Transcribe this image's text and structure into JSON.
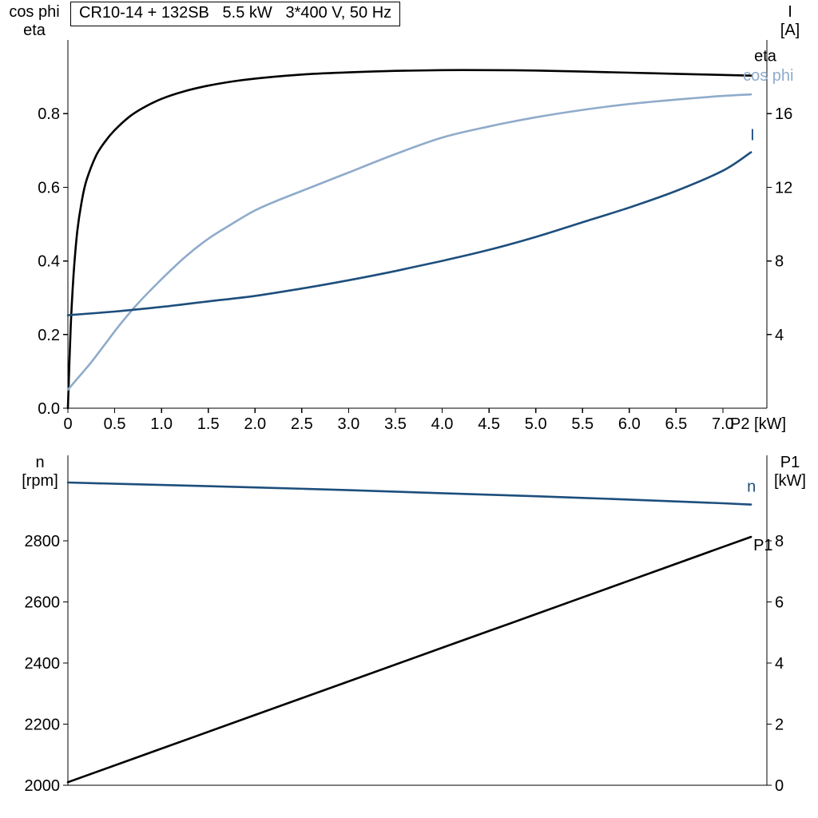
{
  "title_box": {
    "text": "CR10-14 + 132SB   5.5 kW   3*400 V, 50 Hz"
  },
  "axis_corner_labels": {
    "top_left": "cos phi\neta",
    "top_right": "I\n[A]",
    "bottom_left": "n\n[rpm]",
    "bottom_right": "P1\n[kW]"
  },
  "colors": {
    "curve_black": "#000000",
    "curve_dark_blue": "#1d4e7c",
    "curve_light_blue": "#8fabcb"
  },
  "chart_data": [
    {
      "type": "line",
      "position": "top",
      "title": "CR10-14 + 132SB   5.5 kW   3*400 V, 50 Hz",
      "grid": false,
      "legend_position": "curve-end-labels",
      "x_axis": {
        "label": "P2 [kW]",
        "lim": [
          0,
          7.47
        ],
        "tick_values": [
          0,
          0.5,
          1,
          1.5,
          2,
          2.5,
          3,
          3.5,
          4,
          4.5,
          5,
          5.5,
          6,
          6.5,
          7
        ],
        "tick_labels": [
          "0",
          "0.5",
          "1.0",
          "1.5",
          "2.0",
          "2.5",
          "3.0",
          "3.5",
          "4.0",
          "4.5",
          "5.0",
          "5.5",
          "6.0",
          "6.5",
          "7.0"
        ]
      },
      "left_axis": {
        "name": "cos phi / eta",
        "lim": [
          0,
          1.0
        ],
        "tick_values": [
          0,
          0.2,
          0.4,
          0.6,
          0.8
        ],
        "tick_labels": [
          "0.0",
          "0.2",
          "0.4",
          "0.6",
          "0.8"
        ]
      },
      "right_axis": {
        "name": "I [A]",
        "lim": [
          0,
          20
        ],
        "tick_values": [
          4,
          8,
          12,
          16
        ],
        "tick_labels": [
          "4",
          "8",
          "12",
          "16"
        ]
      },
      "series": [
        {
          "name": "eta",
          "label": "eta",
          "axis": "left",
          "color": "#000000",
          "label_offset": [
            4,
            -18
          ],
          "x": [
            0,
            0.03,
            0.06,
            0.1,
            0.15,
            0.2,
            0.3,
            0.4,
            0.5,
            0.65,
            0.8,
            1.0,
            1.25,
            1.5,
            1.75,
            2.0,
            2.5,
            3.0,
            3.5,
            4.0,
            4.5,
            5.0,
            5.5,
            6.0,
            6.5,
            7.0,
            7.3
          ],
          "y": [
            0.0,
            0.22,
            0.36,
            0.48,
            0.565,
            0.62,
            0.685,
            0.725,
            0.755,
            0.79,
            0.815,
            0.84,
            0.861,
            0.876,
            0.887,
            0.895,
            0.906,
            0.912,
            0.916,
            0.918,
            0.918,
            0.917,
            0.914,
            0.911,
            0.908,
            0.905,
            0.903
          ]
        },
        {
          "name": "cos-phi",
          "label": "cos phi",
          "axis": "left",
          "color": "#8fabcb",
          "label_offset": [
            -10,
            -17
          ],
          "x": [
            0,
            0.1,
            0.25,
            0.4,
            0.55,
            0.75,
            1.0,
            1.25,
            1.5,
            1.75,
            2.0,
            2.25,
            2.5,
            2.75,
            3.0,
            3.5,
            4.0,
            4.5,
            5.0,
            5.5,
            6.0,
            6.5,
            7.0,
            7.3
          ],
          "y": [
            0.05,
            0.08,
            0.125,
            0.175,
            0.225,
            0.285,
            0.35,
            0.41,
            0.46,
            0.5,
            0.537,
            0.565,
            0.59,
            0.615,
            0.64,
            0.69,
            0.735,
            0.765,
            0.79,
            0.81,
            0.826,
            0.838,
            0.848,
            0.852
          ]
        },
        {
          "name": "I",
          "label": "I",
          "axis": "right",
          "color": "#1d4e7c",
          "label_offset": [
            -1,
            -15
          ],
          "x": [
            0,
            0.5,
            1.0,
            1.5,
            2.0,
            2.5,
            3.0,
            3.5,
            4.0,
            4.5,
            5.0,
            5.5,
            6.0,
            6.5,
            7.0,
            7.3
          ],
          "y": [
            5.05,
            5.25,
            5.5,
            5.8,
            6.1,
            6.5,
            6.95,
            7.45,
            8.0,
            8.6,
            9.3,
            10.1,
            10.9,
            11.8,
            12.9,
            13.9
          ]
        }
      ]
    },
    {
      "type": "line",
      "position": "bottom",
      "title": "",
      "grid": false,
      "legend_position": "curve-end-labels",
      "x_axis": {
        "label": "",
        "lim": [
          0,
          7.47
        ],
        "tick_values": [],
        "tick_labels": []
      },
      "left_axis": {
        "name": "n [rpm]",
        "lim": [
          2000,
          3080
        ],
        "tick_values": [
          2000,
          2200,
          2400,
          2600,
          2800
        ],
        "tick_labels": [
          "2000",
          "2200",
          "2400",
          "2600",
          "2800"
        ]
      },
      "right_axis": {
        "name": "P1 [kW]",
        "lim": [
          0,
          10.8
        ],
        "tick_values": [
          0,
          2,
          4,
          6,
          8
        ],
        "tick_labels": [
          "0",
          "2",
          "4",
          "6",
          "8"
        ]
      },
      "series": [
        {
          "name": "n",
          "label": "n",
          "axis": "left",
          "color": "#1d4e7c",
          "label_offset": [
            -5,
            -16
          ],
          "x": [
            0,
            1,
            2,
            3,
            4,
            5,
            6,
            7,
            7.3
          ],
          "y": [
            2991,
            2983,
            2975,
            2966,
            2956,
            2946,
            2935,
            2923,
            2919
          ]
        },
        {
          "name": "P1",
          "label": "P1",
          "axis": "right",
          "color": "#000000",
          "label_offset": [
            3,
            17
          ],
          "x": [
            0,
            1,
            2,
            3,
            4,
            5,
            6,
            7,
            7.3
          ],
          "y": [
            0.1,
            1.2,
            2.3,
            3.4,
            4.5,
            5.6,
            6.7,
            7.8,
            8.13
          ]
        }
      ]
    }
  ]
}
